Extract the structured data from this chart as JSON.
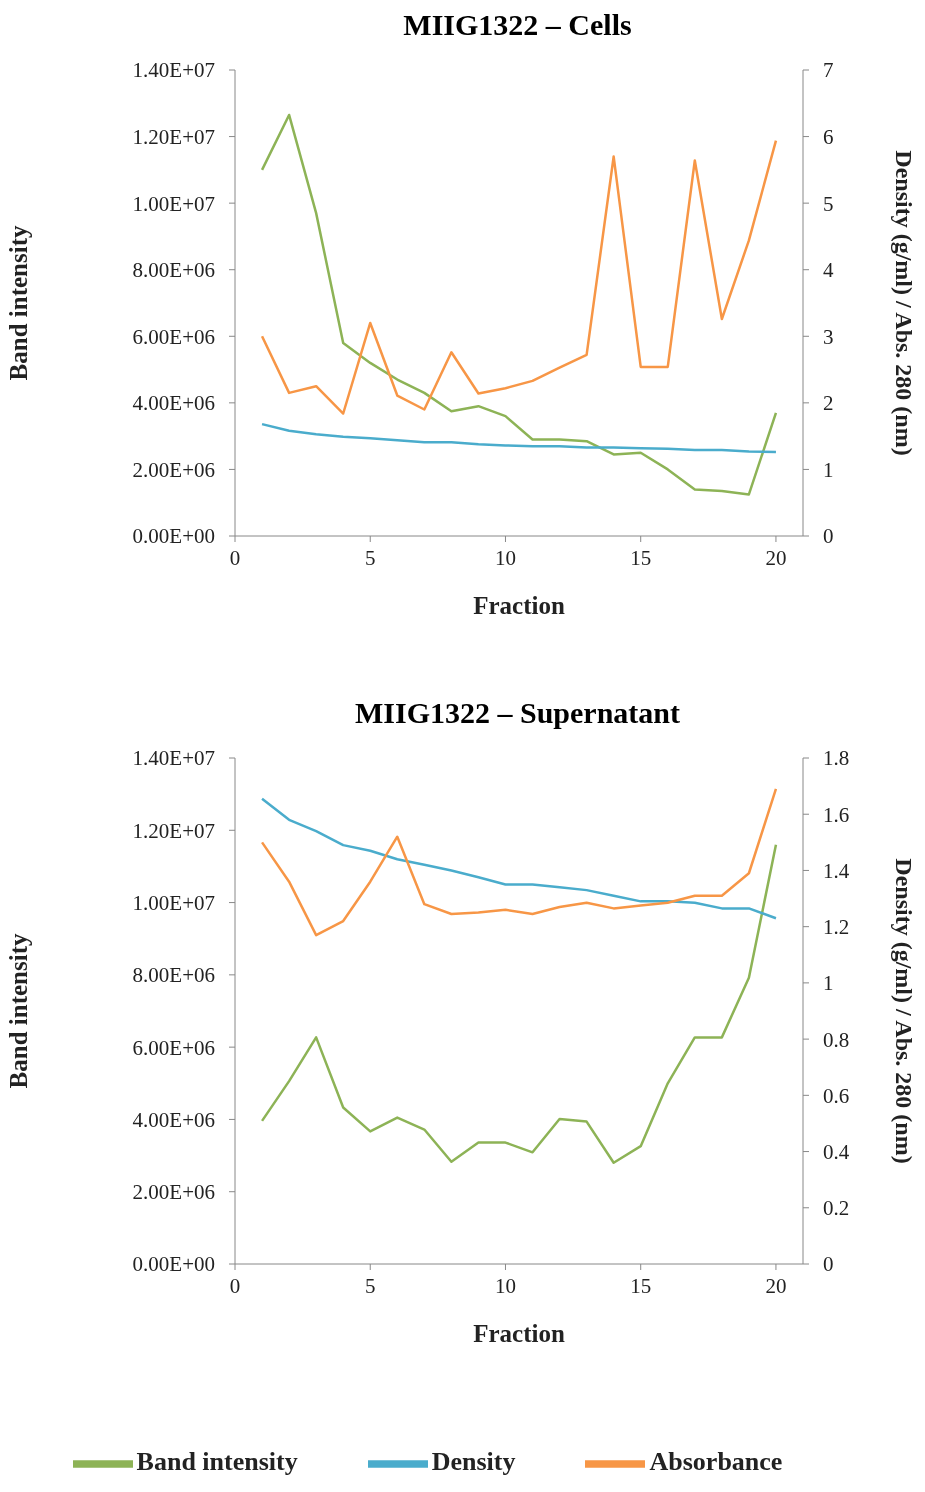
{
  "chart_data": [
    {
      "type": "line",
      "title": "MIIG1322 – Cells",
      "xlabel": "Fraction",
      "ylabel": "Band intensity",
      "y2label": "Density (g/ml) / Abs. 280 (nm)",
      "x": [
        1,
        2,
        3,
        4,
        5,
        6,
        7,
        8,
        9,
        10,
        11,
        12,
        13,
        14,
        15,
        16,
        17,
        18,
        19,
        20
      ],
      "xlim": [
        0,
        21
      ],
      "xticks": [
        0,
        5,
        10,
        15,
        20
      ],
      "ylim": [
        0,
        14000000
      ],
      "yticks": [
        {
          "value": 0,
          "label": "0.00E+00"
        },
        {
          "value": 2000000,
          "label": "2.00E+06"
        },
        {
          "value": 4000000,
          "label": "4.00E+06"
        },
        {
          "value": 6000000,
          "label": "6.00E+06"
        },
        {
          "value": 8000000,
          "label": "8.00E+06"
        },
        {
          "value": 10000000,
          "label": "1.00E+07"
        },
        {
          "value": 12000000,
          "label": "1.20E+07"
        },
        {
          "value": 14000000,
          "label": "1.40E+07"
        }
      ],
      "y2lim": [
        0,
        7
      ],
      "y2ticks": [
        0,
        1,
        2,
        3,
        4,
        5,
        6,
        7
      ],
      "legend": false,
      "marker": "none",
      "series": [
        {
          "color": "#8db356",
          "values": [
            11000000,
            12650000,
            9700000,
            5800000,
            5200000,
            4700000,
            4300000,
            3750000,
            3900000,
            3600000,
            2900000,
            2900000,
            2850000,
            2450000,
            2500000,
            2000000,
            1400000,
            1350000,
            1250000,
            3700000
          ]
        },
        {
          "color": "#4aaccc",
          "axis": "y2",
          "values": [
            1.68,
            1.58,
            1.53,
            1.49,
            1.47,
            1.44,
            1.41,
            1.41,
            1.38,
            1.36,
            1.35,
            1.35,
            1.33,
            1.33,
            1.32,
            1.31,
            1.29,
            1.29,
            1.27,
            1.26
          ]
        },
        {
          "color": "#f79646",
          "axis": "y2",
          "values": [
            3.0,
            2.15,
            2.25,
            1.84,
            3.2,
            2.11,
            1.9,
            2.76,
            2.14,
            2.22,
            2.33,
            2.53,
            2.72,
            5.7,
            2.54,
            2.54,
            5.64,
            3.26,
            4.44,
            5.94
          ]
        }
      ]
    },
    {
      "type": "line",
      "title": "MIIG1322 – Supernatant",
      "xlabel": "Fraction",
      "ylabel": "Band intensity",
      "y2label": "Density (g/ml) / Abs. 280 (nm)",
      "x": [
        1,
        2,
        3,
        4,
        5,
        6,
        7,
        8,
        9,
        10,
        11,
        12,
        13,
        14,
        15,
        16,
        17,
        18,
        19,
        20
      ],
      "xlim": [
        0,
        21
      ],
      "xticks": [
        0,
        5,
        10,
        15,
        20
      ],
      "ylim": [
        0,
        14000000
      ],
      "yticks": [
        {
          "value": 0,
          "label": "0.00E+00"
        },
        {
          "value": 2000000,
          "label": "2.00E+06"
        },
        {
          "value": 4000000,
          "label": "4.00E+06"
        },
        {
          "value": 6000000,
          "label": "6.00E+06"
        },
        {
          "value": 8000000,
          "label": "8.00E+06"
        },
        {
          "value": 10000000,
          "label": "1.00E+07"
        },
        {
          "value": 12000000,
          "label": "1.20E+07"
        },
        {
          "value": 14000000,
          "label": "1.40E+07"
        }
      ],
      "y2lim": [
        0,
        1.8
      ],
      "y2ticks": [
        0,
        0.2,
        0.4,
        0.6,
        0.8,
        1,
        1.2,
        1.4,
        1.6,
        1.8
      ],
      "legend": "bottom",
      "marker": "none",
      "series": [
        {
          "name": "Band intensity",
          "color": "#8db356",
          "values": [
            3960000,
            5060000,
            6270000,
            4330000,
            3670000,
            4050000,
            3720000,
            2830000,
            3360000,
            3360000,
            3090000,
            4010000,
            3940000,
            2800000,
            3260000,
            5000000,
            6270000,
            6270000,
            7920000,
            11600000
          ]
        },
        {
          "name": "Density",
          "color": "#4aaccc",
          "axis": "y2",
          "values": [
            1.655,
            1.58,
            1.54,
            1.49,
            1.47,
            1.44,
            1.42,
            1.4,
            1.376,
            1.35,
            1.35,
            1.34,
            1.33,
            1.31,
            1.29,
            1.29,
            1.285,
            1.265,
            1.265,
            1.23
          ]
        },
        {
          "name": "Absorbance",
          "color": "#f79646",
          "axis": "y2",
          "values": [
            1.5,
            1.36,
            1.17,
            1.22,
            1.36,
            1.52,
            1.28,
            1.245,
            1.25,
            1.26,
            1.245,
            1.27,
            1.285,
            1.265,
            1.275,
            1.285,
            1.31,
            1.31,
            1.39,
            1.69
          ]
        }
      ]
    }
  ]
}
